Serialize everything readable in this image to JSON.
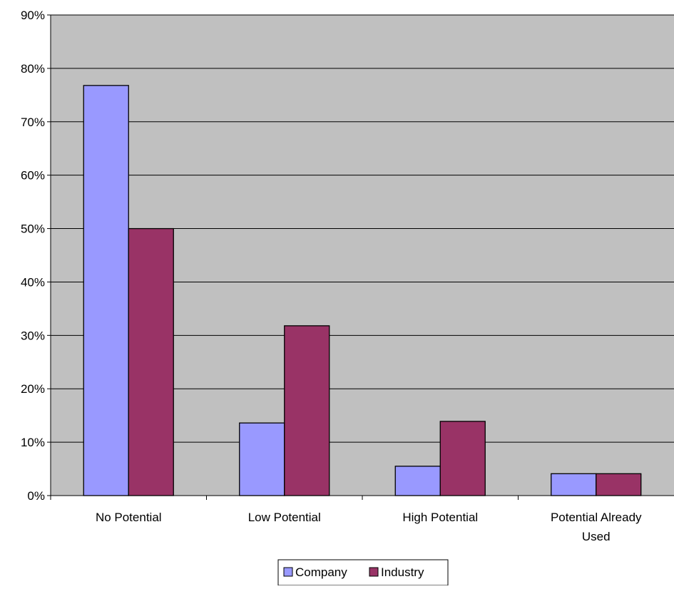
{
  "chart_data": {
    "type": "bar",
    "title": "",
    "xlabel": "",
    "ylabel": "",
    "categories": [
      [
        "No Potential"
      ],
      [
        "Low  Potential"
      ],
      [
        "High Potential"
      ],
      [
        "Potential Already",
        "Used"
      ]
    ],
    "series": [
      {
        "name": "Company",
        "color": "#9999ff",
        "values": [
          76.8,
          13.6,
          5.5,
          4.1
        ]
      },
      {
        "name": "Industry",
        "color": "#993366",
        "values": [
          50.0,
          31.8,
          13.9,
          4.1
        ]
      }
    ],
    "ylim": [
      0,
      90
    ],
    "yticks": [
      0,
      10,
      20,
      30,
      40,
      50,
      60,
      70,
      80,
      90
    ],
    "ytick_labels": [
      "0%",
      "10%",
      "20%",
      "30%",
      "40%",
      "50%",
      "60%",
      "70%",
      "80%",
      "90%"
    ],
    "grid": true,
    "plot_background": "#c0c0c0",
    "legend": {
      "position": "bottom",
      "entries": [
        "Company",
        "Industry"
      ]
    }
  }
}
